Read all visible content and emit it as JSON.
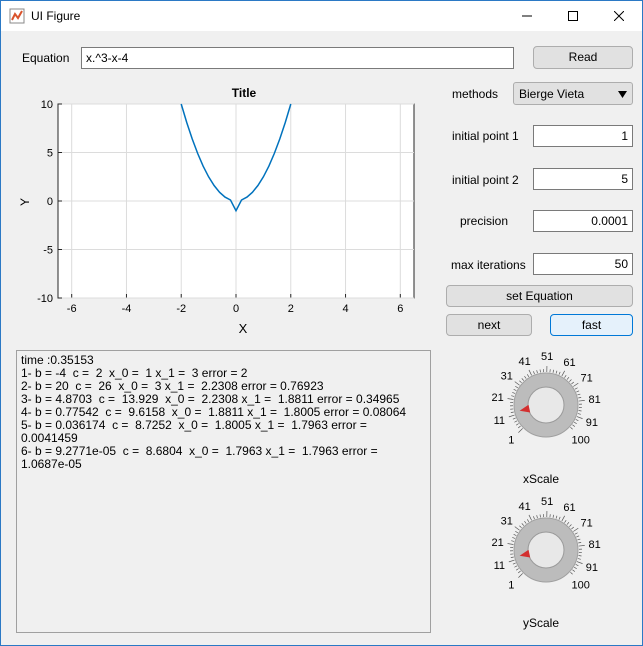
{
  "window": {
    "title": "UI Figure",
    "icon": "matlab-figure-icon"
  },
  "equation": {
    "label": "Equation",
    "value": "x.^3-x-4",
    "read_label": "Read"
  },
  "plot": {
    "title": "Title",
    "xlabel": "X",
    "ylabel": "Y",
    "xticks": [
      "-6",
      "-4",
      "-2",
      "0",
      "2",
      "4",
      "6"
    ],
    "yticks": [
      "10",
      "5",
      "0",
      "-5",
      "-10"
    ],
    "chart_data": {
      "type": "line",
      "xlim": [
        -6.5,
        6.5
      ],
      "ylim": [
        -10,
        10
      ],
      "grid": true,
      "x": [
        -2,
        -1.8,
        -1.6,
        -1.4,
        -1.2,
        -1,
        -0.8,
        -0.6,
        -0.4,
        -0.2,
        0,
        0.2,
        0.4,
        0.6,
        0.8,
        1,
        1.2,
        1.4,
        1.6,
        1.8,
        2
      ],
      "y": [
        10,
        8.1,
        6.4,
        4.9,
        3.6,
        2.5,
        1.6,
        0.9,
        0.4,
        0.1,
        -1,
        0.1,
        0.4,
        0.9,
        1.6,
        2.5,
        3.6,
        4.9,
        6.4,
        8.1,
        10
      ],
      "color": "#0072bd"
    }
  },
  "controls": {
    "methods_label": "methods",
    "methods_value": "Bierge Vieta",
    "p1_label": "initial point 1",
    "p1_value": "1",
    "p2_label": "initial point 2",
    "p2_value": "5",
    "precision_label": "precision",
    "precision_value": "0.0001",
    "maxit_label": "max iterations",
    "maxit_value": "50",
    "set_label": "set Equation",
    "next_label": "next",
    "fast_label": "fast"
  },
  "output": {
    "lines": [
      "time :0.35153",
      "1- b = -4  c =  2  x_0 =  1 x_1 =  3 error = 2",
      "2- b = 20  c =  26  x_0 =  3 x_1 =  2.2308 error = 0.76923",
      "3- b = 4.8703  c =  13.929  x_0 =  2.2308 x_1 =  1.8811 error = 0.34965",
      "4- b = 0.77542  c =  9.6158  x_0 =  1.8811 x_1 =  1.8005 error = 0.08064",
      "5- b = 0.036174  c =  8.7252  x_0 =  1.8005 x_1 =  1.7963 error =",
      "0.0041459",
      "6- b = 9.2771e-05  c =  8.6804  x_0 =  1.7963 x_1 =  1.7963 error =",
      "1.0687e-05"
    ]
  },
  "knobs": {
    "ticks": [
      "1",
      "11",
      "21",
      "31",
      "41",
      "51",
      "61",
      "71",
      "81",
      "91",
      "100"
    ],
    "xscale": {
      "label": "xScale",
      "value": 13
    },
    "yscale": {
      "label": "yScale",
      "value": 13
    }
  }
}
